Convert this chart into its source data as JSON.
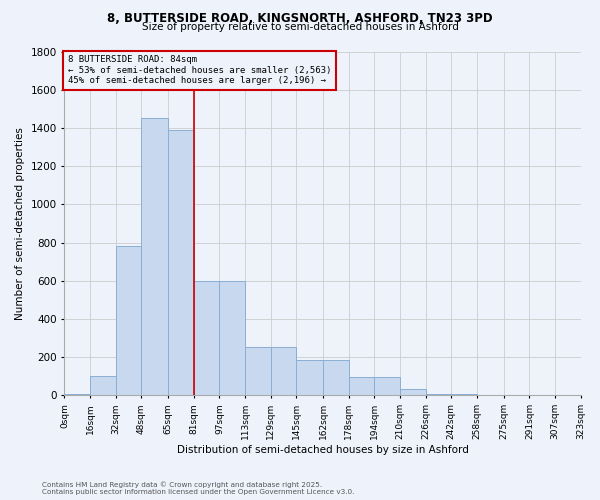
{
  "title_line1": "8, BUTTERSIDE ROAD, KINGSNORTH, ASHFORD, TN23 3PD",
  "title_line2": "Size of property relative to semi-detached houses in Ashford",
  "xlabel": "Distribution of semi-detached houses by size in Ashford",
  "ylabel": "Number of semi-detached properties",
  "bins": [
    "0sqm",
    "16sqm",
    "32sqm",
    "48sqm",
    "65sqm",
    "81sqm",
    "97sqm",
    "113sqm",
    "129sqm",
    "145sqm",
    "162sqm",
    "178sqm",
    "194sqm",
    "210sqm",
    "226sqm",
    "242sqm",
    "258sqm",
    "275sqm",
    "291sqm",
    "307sqm",
    "323sqm"
  ],
  "bin_edges": [
    0,
    16,
    32,
    48,
    65,
    81,
    97,
    113,
    129,
    145,
    162,
    178,
    194,
    210,
    226,
    242,
    258,
    275,
    291,
    307,
    323
  ],
  "bar_heights": [
    5,
    100,
    780,
    1450,
    1390,
    600,
    600,
    255,
    255,
    185,
    185,
    95,
    95,
    35,
    10,
    10,
    3,
    3,
    1,
    0
  ],
  "bar_color": "#c8d9ef",
  "bar_edge_color": "#8aafd4",
  "grid_color": "#cccccc",
  "vline_x": 81,
  "vline_color": "#cc0000",
  "annotation_title": "8 BUTTERSIDE ROAD: 84sqm",
  "annotation_line1": "← 53% of semi-detached houses are smaller (2,563)",
  "annotation_line2": "45% of semi-detached houses are larger (2,196) →",
  "annotation_box_color": "#cc0000",
  "ylim": [
    0,
    1800
  ],
  "yticks": [
    0,
    200,
    400,
    600,
    800,
    1000,
    1200,
    1400,
    1600,
    1800
  ],
  "footnote1": "Contains HM Land Registry data © Crown copyright and database right 2025.",
  "footnote2": "Contains public sector information licensed under the Open Government Licence v3.0.",
  "bg_color": "#eef2fb"
}
